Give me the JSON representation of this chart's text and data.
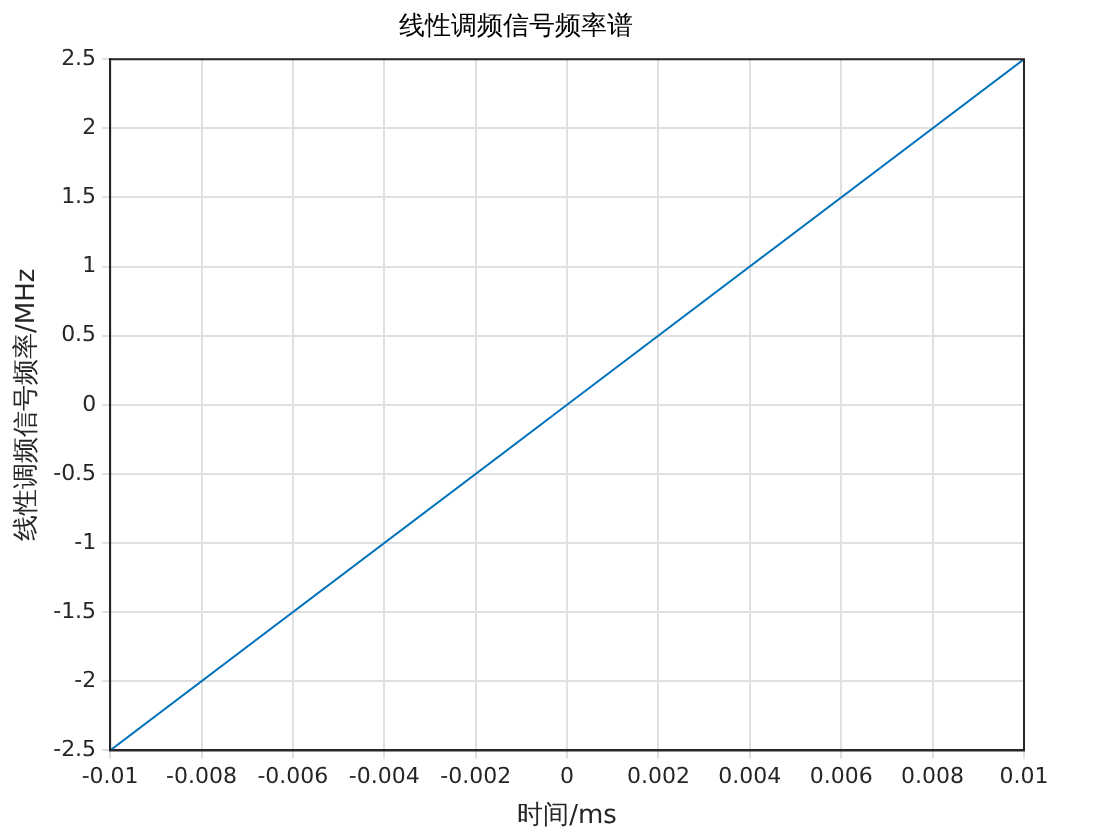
{
  "chart_data": {
    "type": "line",
    "title": "线性调频信号频率谱",
    "xlabel": "时间/ms",
    "ylabel": "线性调频信号频率/MHz",
    "x": [
      -0.01,
      0,
      0.01
    ],
    "series": [
      {
        "color": "#0072bd",
        "values": [
          -2.5,
          0,
          2.5
        ]
      }
    ],
    "xlim": [
      -0.01,
      0.01
    ],
    "xticks": [
      -0.01,
      -0.008,
      -0.006,
      -0.004,
      -0.002,
      0,
      0.002,
      0.004,
      0.006,
      0.008,
      0.01
    ],
    "ylim": [
      -2.5,
      2.5
    ],
    "yticks": [
      -2.5,
      -2,
      -1.5,
      -1,
      -0.5,
      0,
      0.5,
      1,
      1.5,
      2,
      2.5
    ],
    "grid": true,
    "marker": "none",
    "line_style": "solid",
    "legend": false
  }
}
